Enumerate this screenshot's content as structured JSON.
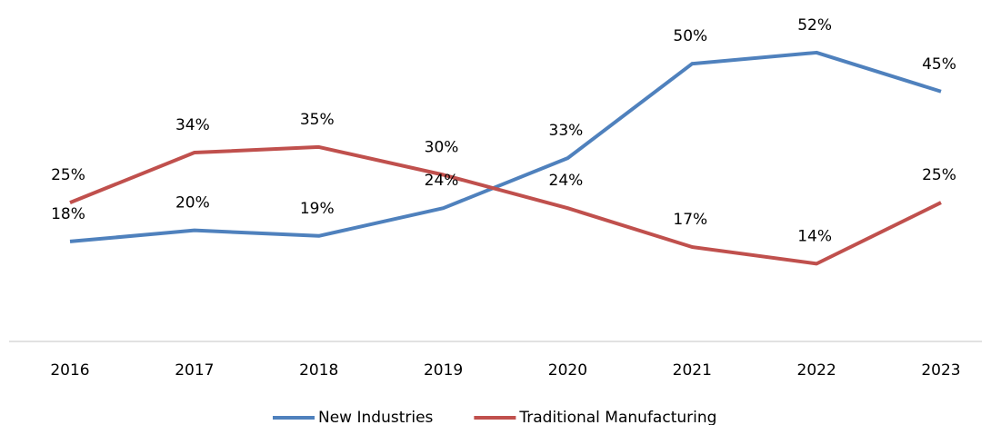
{
  "chart_data": {
    "type": "line",
    "x": [
      "2016",
      "2017",
      "2018",
      "2019",
      "2020",
      "2021",
      "2022",
      "2023"
    ],
    "series": [
      {
        "name": "New Industries",
        "color": "#4f81bd",
        "values": [
          18,
          20,
          19,
          24,
          33,
          50,
          52,
          45
        ],
        "value_labels": [
          "18%",
          "20%",
          "19%",
          "24%",
          "33%",
          "50%",
          "52%",
          "45%"
        ]
      },
      {
        "name": "Traditional Manufacturing",
        "color": "#c0504d",
        "values": [
          25,
          34,
          35,
          30,
          24,
          17,
          14,
          25
        ],
        "value_labels": [
          "25%",
          "34%",
          "35%",
          "30%",
          "24%",
          "17%",
          "14%",
          "25%"
        ]
      }
    ],
    "ylim": [
      0,
      60
    ],
    "grid": false,
    "legend": "bottom"
  }
}
